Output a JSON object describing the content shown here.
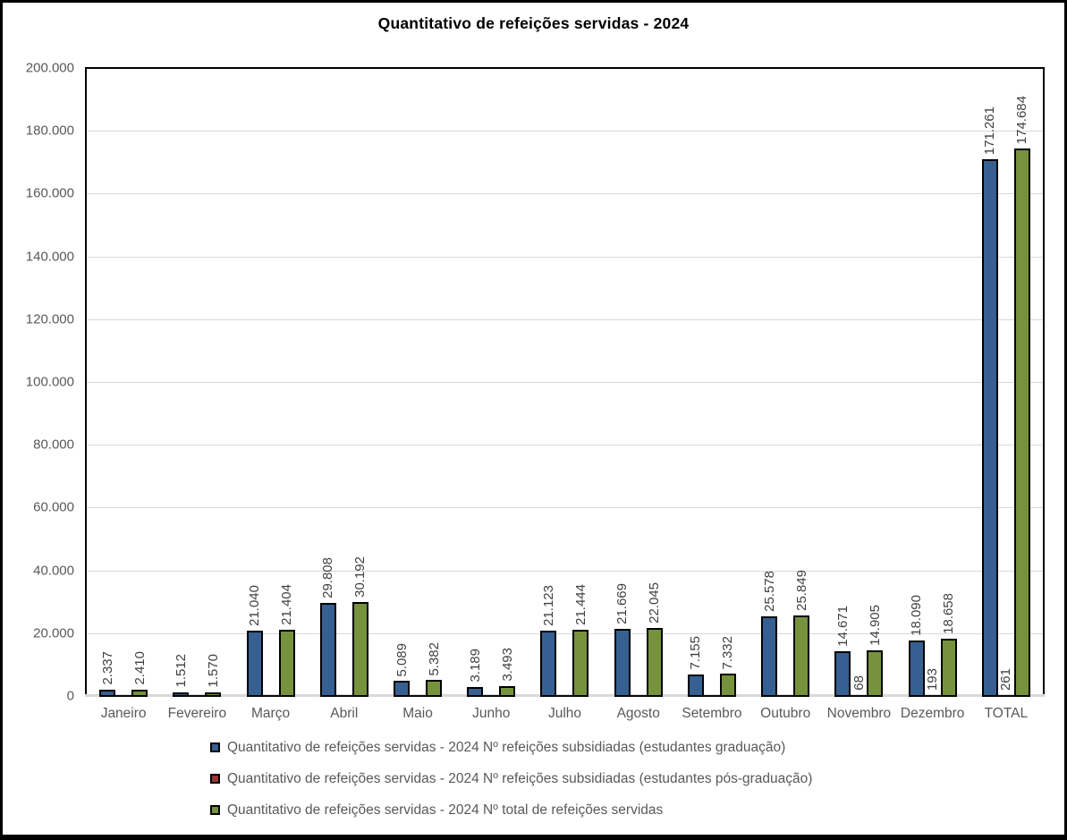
{
  "title": "Quantitativo de refeições servidas - 2024",
  "chart_data": {
    "type": "bar",
    "title": "Quantitativo de refeições servidas - 2024",
    "xlabel": "",
    "ylabel": "",
    "ylim": [
      0,
      200000
    ],
    "grid": true,
    "gridline_color": "#d9d9d9",
    "axis_label_color": "#595959",
    "data_label_color": "#404040",
    "data_label_rotation": "vertical-bottom-to-top",
    "legend_position": "bottom-left",
    "yticks": [
      "200.000",
      "180.000",
      "160.000",
      "140.000",
      "120.000",
      "100.000",
      "80.000",
      "60.000",
      "40.000",
      "20.000",
      "0"
    ],
    "categories": [
      "Janeiro",
      "Fevereiro",
      "Março",
      "Abril",
      "Maio",
      "Junho",
      "Julho",
      "Agosto",
      "Setembro",
      "Outubro",
      "Novembro",
      "Dezembro",
      "TOTAL"
    ],
    "series": [
      {
        "name": "Quantitativo de refeições servidas - 2024 Nº refeições subsidiadas (estudantes graduação)",
        "color": "#376092",
        "values": [
          2337,
          1512,
          21040,
          29808,
          5089,
          3189,
          21123,
          21669,
          7155,
          25578,
          14671,
          18090,
          171261
        ],
        "labels": [
          "2.337",
          "1.512",
          "21.040",
          "29.808",
          "5.089",
          "3.189",
          "21.123",
          "21.669",
          "7.155",
          "25.578",
          "14.671",
          "18.090",
          "171.261"
        ]
      },
      {
        "name": "Quantitativo de refeições servidas - 2024 Nº refeições subsidiadas (estudantes pós-graduação)",
        "color": "#953735",
        "values": [
          0,
          0,
          0,
          0,
          0,
          0,
          0,
          0,
          0,
          0,
          68,
          193,
          261
        ],
        "labels": [
          "",
          "",
          "",
          "",
          "",
          "",
          "",
          "",
          "",
          "",
          "68",
          "193",
          "261"
        ]
      },
      {
        "name": "Quantitativo de refeições servidas - 2024 Nº total de refeições servidas",
        "color": "#76923C",
        "values": [
          2410,
          1570,
          21404,
          30192,
          5382,
          3493,
          21444,
          22045,
          7332,
          25849,
          14905,
          18658,
          174684
        ],
        "labels": [
          "2.410",
          "1.570",
          "21.404",
          "30.192",
          "5.382",
          "3.493",
          "21.444",
          "22.045",
          "7.332",
          "25.849",
          "14.905",
          "18.658",
          "174.684"
        ]
      }
    ]
  }
}
